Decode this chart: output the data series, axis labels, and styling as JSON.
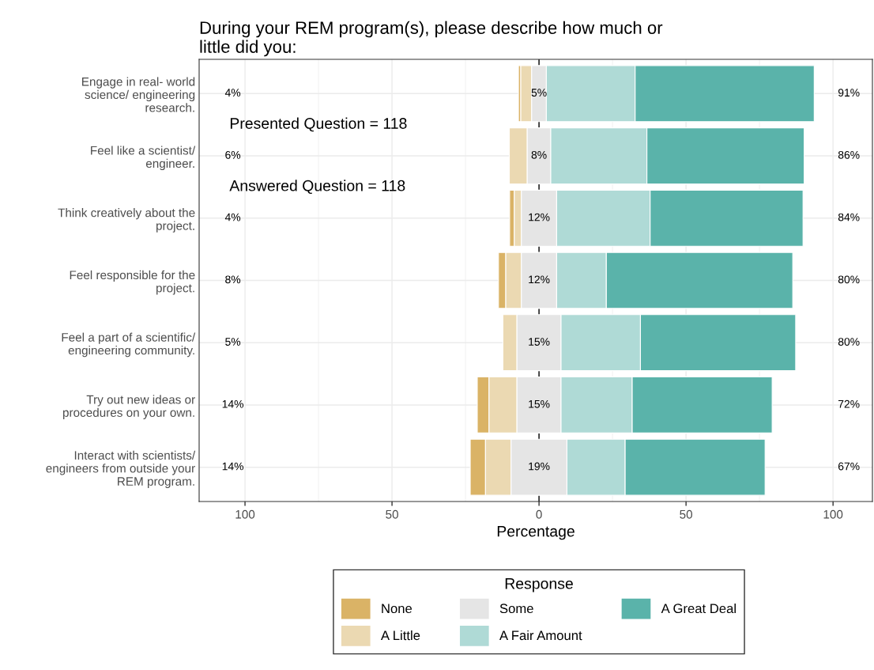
{
  "chart_data": {
    "type": "bar",
    "orientation": "horizontal",
    "title": "During your REM program(s), please describe how much or\nlittle did you:",
    "xlabel": "Percentage",
    "legend_title": "Response",
    "legend": "bottom",
    "grid": true,
    "categories": [
      "Engage in real- world\nscience/ engineering\nresearch.",
      "Feel like a scientist/\nengineer.",
      "Think creatively about the\nproject.",
      "Feel responsible for the\nproject.",
      "Feel a part of a scientific/\nengineering community.",
      "Try out new ideas or\nprocedures on your own.",
      "Interact with scientists/\nengineers from outside your\nREM program."
    ],
    "series": [
      {
        "name": "None",
        "color": "#dab366",
        "values": [
          0.8,
          null,
          1.6,
          2.5,
          null,
          4.0,
          5.2
        ],
        "base": [
          -7.0,
          null,
          -10.0,
          -13.8,
          null,
          -21.0,
          -23.4
        ]
      },
      {
        "name": "A Little",
        "color": "#ebd9b2",
        "values": [
          3.7,
          6.1,
          2.4,
          5.3,
          4.8,
          9.5,
          8.7
        ],
        "base": [
          -6.2,
          -10.1,
          -8.4,
          -11.3,
          -12.3,
          -17.0,
          -18.2
        ]
      },
      {
        "name": "Some",
        "color": "#e5e5e5",
        "values": [
          5,
          8,
          12,
          12,
          15,
          15,
          19
        ],
        "base": [
          -2.5,
          -4,
          -6,
          -6,
          -7.5,
          -7.5,
          -9.5
        ],
        "value_labels": [
          "5%",
          "8%",
          "12%",
          "12%",
          "15%",
          "15%",
          "19%"
        ]
      },
      {
        "name": "A Fair Amount",
        "color": "#afdad6",
        "values": [
          30.2,
          32.7,
          31.8,
          16.9,
          27.0,
          24.2,
          19.8
        ],
        "base": [
          2.5,
          4,
          6,
          6,
          7.5,
          7.5,
          9.5
        ]
      },
      {
        "name": "A Great Deal",
        "color": "#5ab3aa",
        "values": [
          60.9,
          53.5,
          52.0,
          63.4,
          52.8,
          47.6,
          47.6
        ],
        "base": [
          32.7,
          36.7,
          37.8,
          22.9,
          34.5,
          31.7,
          29.3
        ]
      }
    ],
    "xlim": [
      -115.6,
      113.4
    ],
    "xticks": [
      {
        "value": -100,
        "label": "100"
      },
      {
        "value": -50,
        "label": "50"
      },
      0,
      50,
      100
    ],
    "ref_lines": [
      {
        "axis": "x",
        "value": 0,
        "color": "#000000"
      }
    ],
    "annotations": [
      "Presented Question = 118",
      "Answered Question = 118",
      "4%",
      "6%",
      "4%",
      "8%",
      "5%",
      "14%",
      "14%",
      "91%",
      "86%",
      "84%",
      "80%",
      "80%",
      "72%",
      "67%"
    ]
  }
}
